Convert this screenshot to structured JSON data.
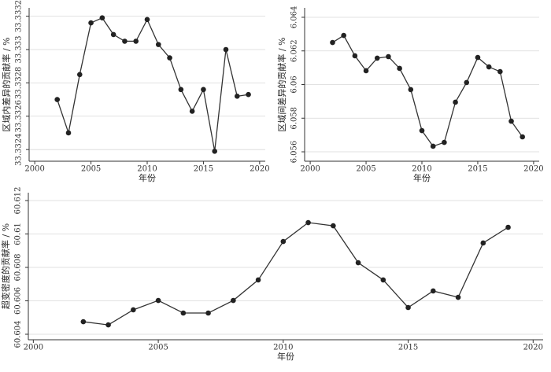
{
  "chart_data": [
    {
      "type": "line",
      "x_label": "年份",
      "y_label": "区域内差异的贡献率 / %",
      "x": [
        2002,
        2003,
        2004,
        2005,
        2006,
        2007,
        2008,
        2009,
        2010,
        2011,
        2012,
        2013,
        2014,
        2015,
        2016,
        2017,
        2018,
        2019
      ],
      "values": [
        33.3327,
        33.3325,
        33.33285,
        33.33316,
        33.33319,
        33.33309,
        33.33305,
        33.33305,
        33.33318,
        33.33303,
        33.33295,
        33.33276,
        33.33263,
        33.33276,
        33.33239,
        33.333,
        33.33272,
        33.33273
      ],
      "color": "#333333",
      "xlim": [
        1999.5,
        2020.5
      ],
      "xticks": [
        2000,
        2005,
        2010,
        2015,
        2020
      ],
      "ylim": [
        33.33233,
        33.33325
      ],
      "yticks": [
        33.3324,
        33.3326,
        33.3328,
        33.333,
        33.3332
      ],
      "grid": true
    },
    {
      "type": "line",
      "x_label": "年份",
      "y_label": "区域间差异的贡献率 / %",
      "x": [
        2002,
        2003,
        2004,
        2005,
        2006,
        2007,
        2008,
        2009,
        2010,
        2011,
        2012,
        2013,
        2014,
        2015,
        2016,
        2017,
        2018,
        2019
      ],
      "values": [
        6.0625,
        6.06292,
        6.06171,
        6.06082,
        6.06157,
        6.06166,
        6.06096,
        6.0597,
        6.05726,
        6.05633,
        6.05656,
        6.05895,
        6.06012,
        6.06161,
        6.06105,
        6.06077,
        6.05782,
        6.05689
      ],
      "color": "#333333",
      "xlim": [
        1999.5,
        2020.5
      ],
      "xticks": [
        2000,
        2005,
        2010,
        2015,
        2020
      ],
      "ylim": [
        6.05544,
        6.06456
      ],
      "yticks": [
        6.056,
        6.058,
        6.06,
        6.062,
        6.064
      ],
      "grid": true
    },
    {
      "type": "line",
      "x_label": "年份",
      "y_label": "超变密度的贡献率 / %",
      "x": [
        2002,
        2003,
        2004,
        2005,
        2006,
        2007,
        2008,
        2009,
        2010,
        2011,
        2012,
        2013,
        2014,
        2015,
        2016,
        2017,
        2018,
        2019
      ],
      "values": [
        60.60475,
        60.60456,
        60.60546,
        60.60602,
        60.60527,
        60.60527,
        60.60602,
        60.60725,
        60.60955,
        60.61068,
        60.61049,
        60.60828,
        60.60725,
        60.6056,
        60.60659,
        60.60621,
        60.60946,
        60.6104
      ],
      "color": "#333333",
      "xlim": [
        1999.8,
        2020.4
      ],
      "xticks": [
        2000,
        2005,
        2010,
        2015,
        2020
      ],
      "ylim": [
        60.60367,
        60.61247
      ],
      "yticks": [
        60.604,
        60.606,
        60.608,
        60.61,
        60.612
      ],
      "grid": true
    }
  ]
}
